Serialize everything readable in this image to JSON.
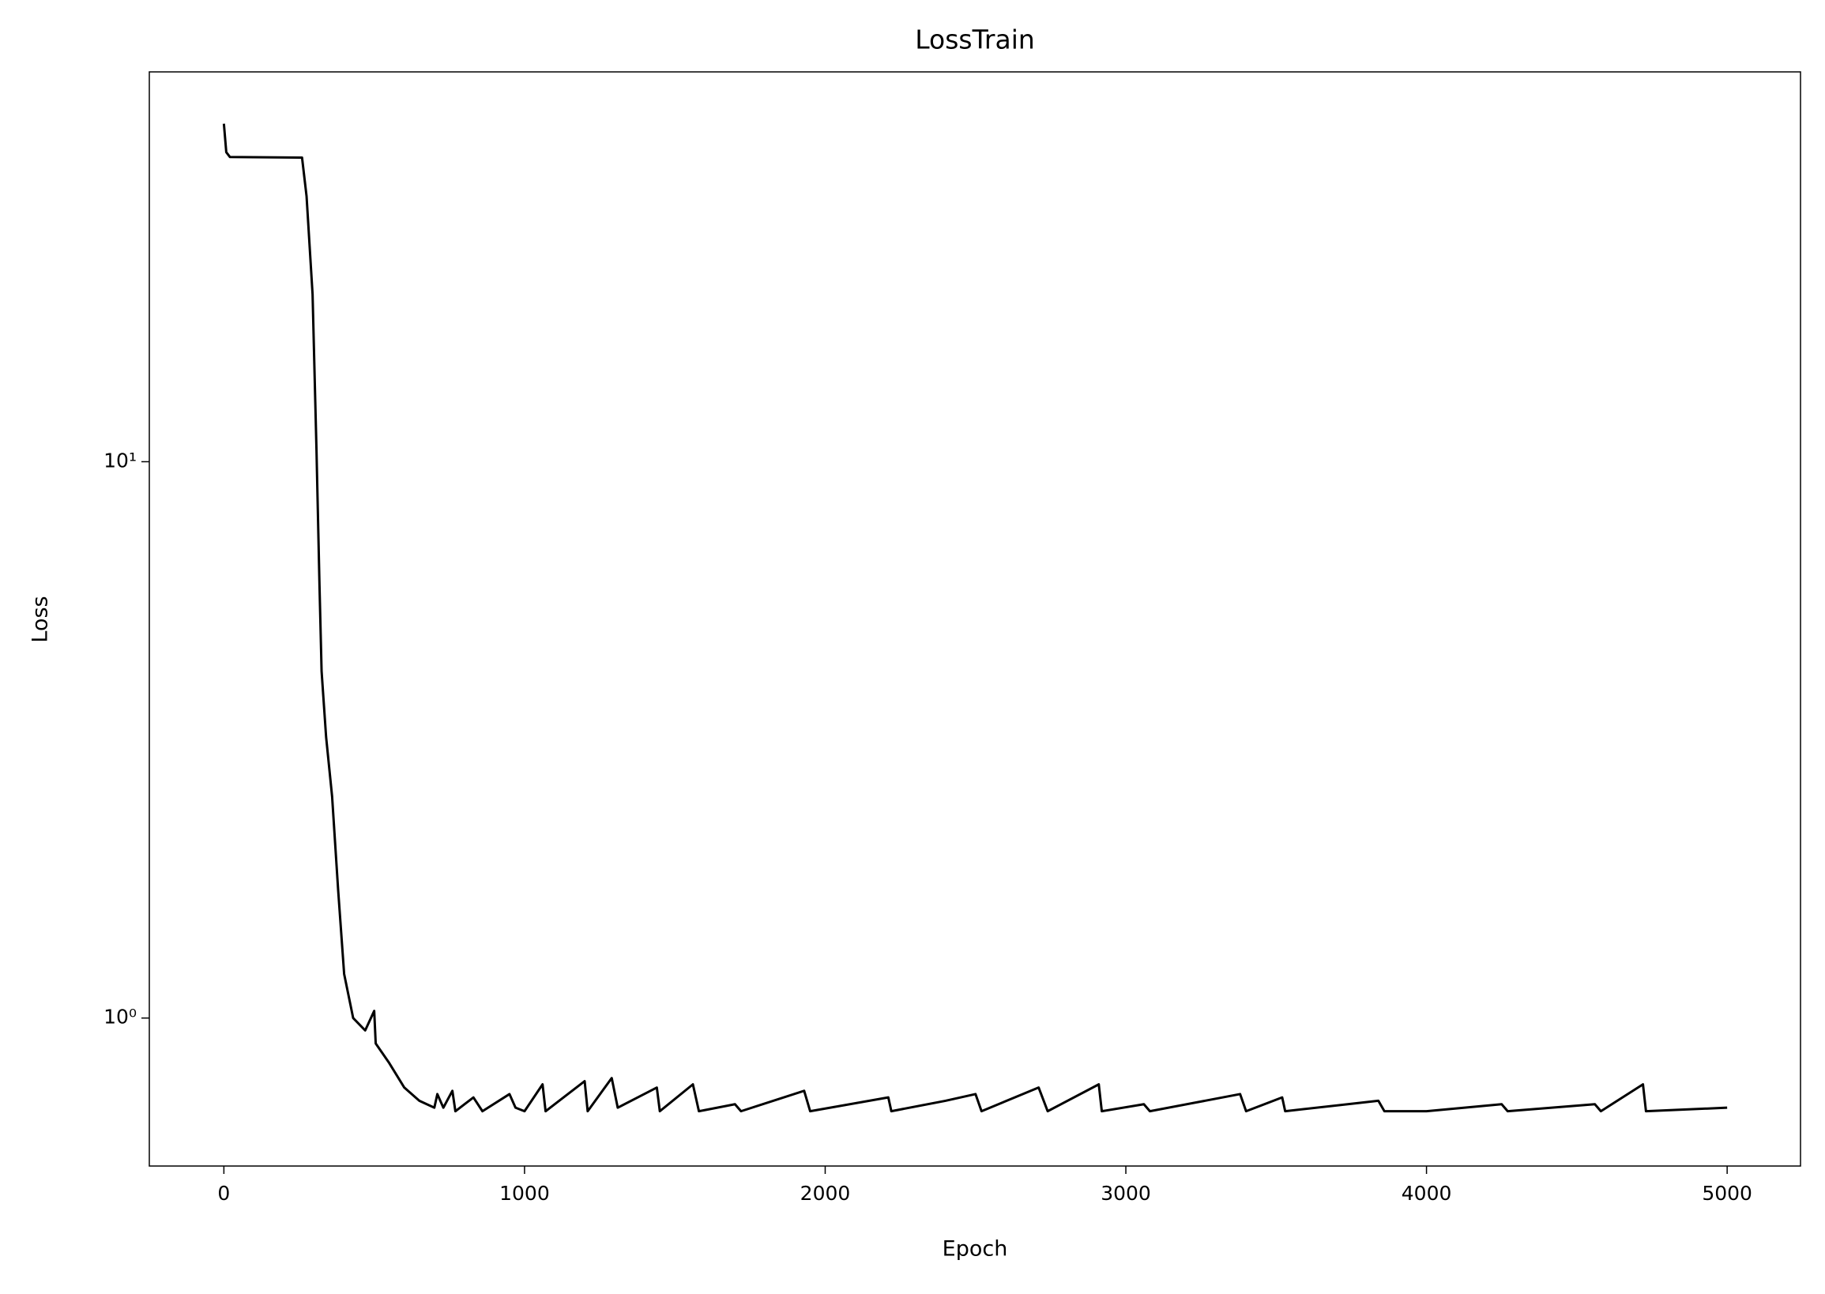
{
  "chart_data": {
    "type": "line",
    "title": "LossTrain",
    "x_label": "Epoch",
    "y_label": "Loss",
    "yscale": "log",
    "color": "#000000",
    "xlim": [
      -248,
      5244
    ],
    "xticks": [
      0,
      1000,
      2000,
      3000,
      4000,
      5000
    ],
    "ylim": [
      0.542,
      50.2
    ],
    "yticks": [
      {
        "value": 1,
        "label": "10⁰"
      },
      {
        "value": 10,
        "label": "10¹"
      }
    ],
    "series": [
      {
        "name": "LossTrain",
        "color": "#000000",
        "x": [
          0,
          8,
          20,
          260,
          275,
          295,
          308,
          318,
          325,
          340,
          360,
          380,
          400,
          430,
          470,
          500,
          505,
          550,
          600,
          650,
          700,
          710,
          730,
          760,
          770,
          830,
          860,
          950,
          970,
          1000,
          1060,
          1070,
          1200,
          1210,
          1290,
          1310,
          1440,
          1450,
          1560,
          1580,
          1700,
          1720,
          1930,
          1950,
          2210,
          2220,
          2400,
          2500,
          2520,
          2710,
          2740,
          2910,
          2920,
          3060,
          3080,
          3380,
          3400,
          3520,
          3530,
          3840,
          3860,
          4000,
          4250,
          4270,
          4560,
          4580,
          4720,
          4730,
          5000
        ],
        "values": [
          40.5,
          36,
          35.3,
          35.2,
          30,
          20,
          10.5,
          6,
          4.2,
          3.2,
          2.5,
          1.7,
          1.2,
          1.0,
          0.95,
          1.03,
          0.9,
          0.83,
          0.75,
          0.71,
          0.69,
          0.73,
          0.69,
          0.74,
          0.68,
          0.72,
          0.68,
          0.73,
          0.69,
          0.68,
          0.76,
          0.68,
          0.77,
          0.68,
          0.78,
          0.69,
          0.75,
          0.68,
          0.76,
          0.68,
          0.7,
          0.68,
          0.74,
          0.68,
          0.72,
          0.68,
          0.71,
          0.73,
          0.68,
          0.75,
          0.68,
          0.76,
          0.68,
          0.7,
          0.68,
          0.73,
          0.68,
          0.72,
          0.68,
          0.71,
          0.68,
          0.68,
          0.7,
          0.68,
          0.7,
          0.68,
          0.76,
          0.68,
          0.69
        ]
      }
    ]
  }
}
